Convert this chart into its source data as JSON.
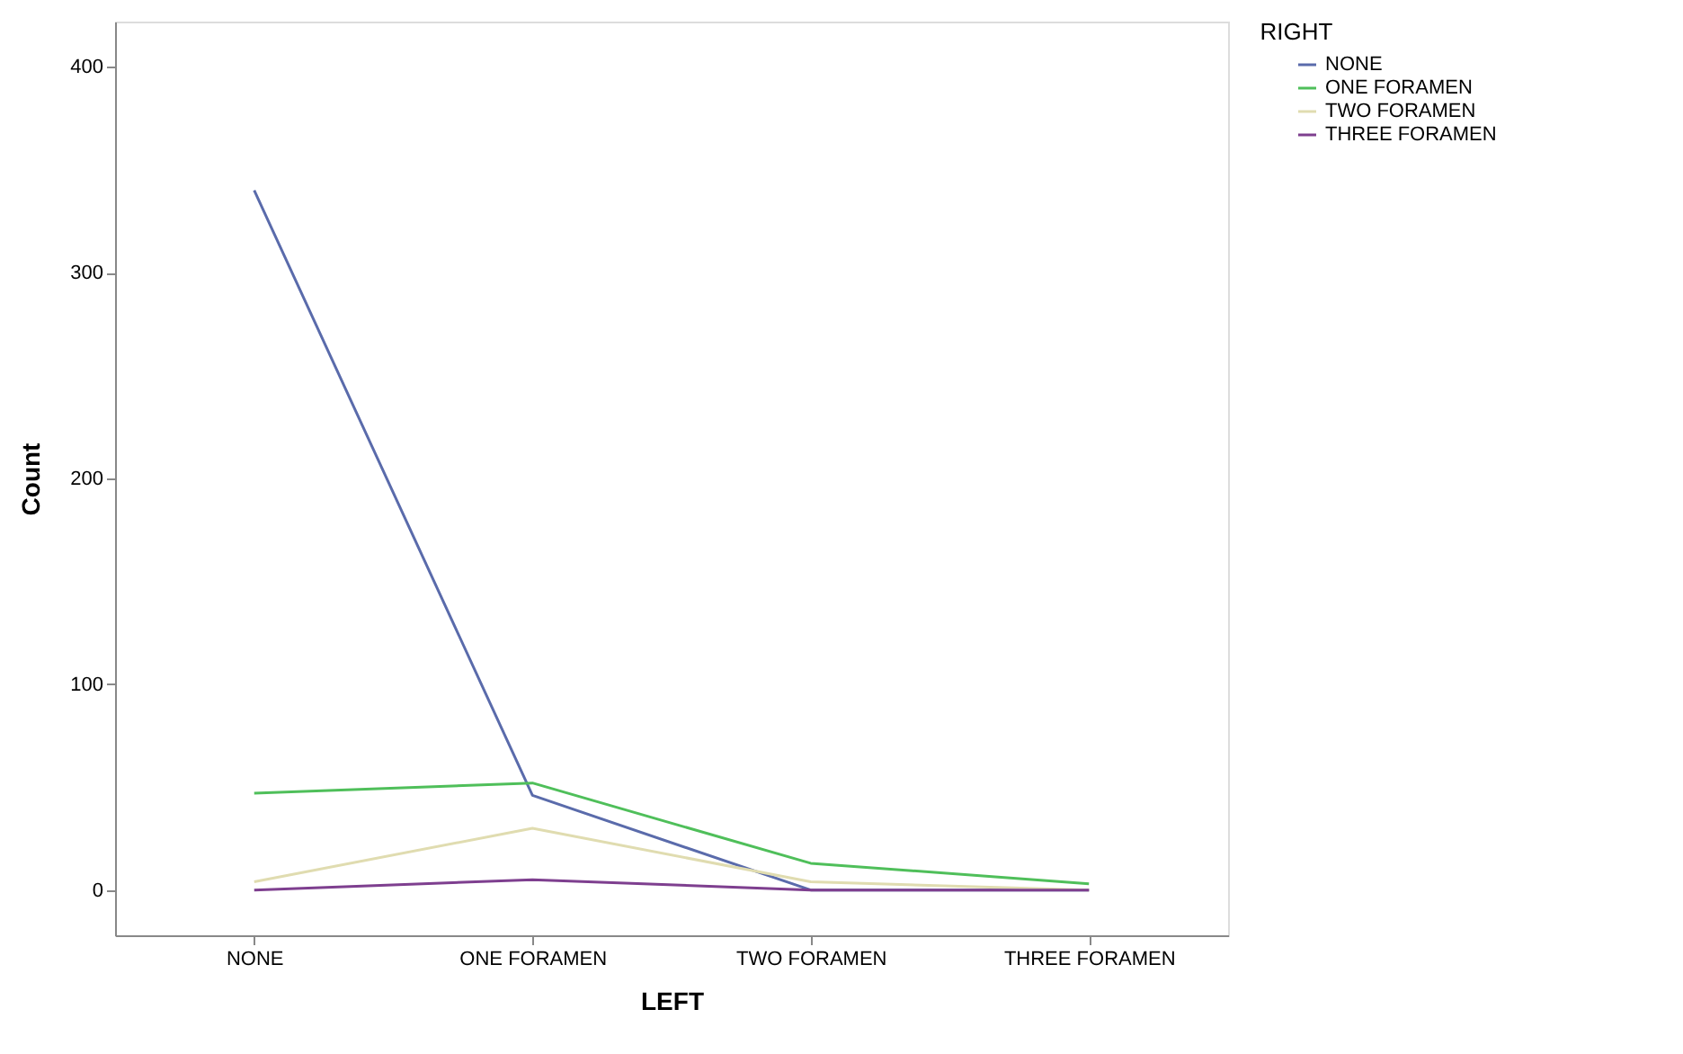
{
  "chart_data": {
    "type": "line",
    "xlabel": "LEFT",
    "ylabel": "Count",
    "legend_title": "RIGHT",
    "legend": "top right",
    "grid": false,
    "marker": "none",
    "line_style": "solid",
    "categories": [
      "NONE",
      "ONE FORAMEN",
      "TWO FORAMEN",
      "THREE FORAMEN"
    ],
    "ylim": [
      -22,
      422
    ],
    "yticks": [
      0,
      100,
      200,
      300,
      400
    ],
    "series": [
      {
        "name": "NONE",
        "color": "#5a6bab",
        "values": [
          340,
          46,
          0,
          0
        ]
      },
      {
        "name": "ONE FORAMEN",
        "color": "#4fbf5a",
        "values": [
          47,
          52,
          13,
          3
        ]
      },
      {
        "name": "TWO FORAMEN",
        "color": "#e0dcb0",
        "values": [
          4,
          30,
          4,
          0
        ]
      },
      {
        "name": "THREE FORAMEN",
        "color": "#7e3f8f",
        "values": [
          0,
          5,
          0,
          0
        ]
      }
    ]
  }
}
